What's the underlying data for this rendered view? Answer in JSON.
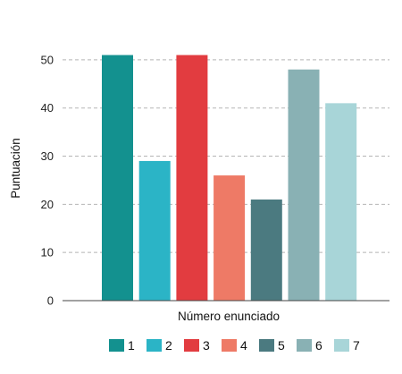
{
  "chart_data": {
    "type": "bar",
    "categories": [
      "1",
      "2",
      "3",
      "4",
      "5",
      "6",
      "7"
    ],
    "values": [
      51,
      29,
      51,
      26,
      21,
      48,
      41
    ],
    "colors": [
      "#13918f",
      "#2bb4c6",
      "#e23c40",
      "#ee7a66",
      "#4b7a80",
      "#89b1b4",
      "#a8d5d8"
    ],
    "title": "",
    "xlabel": "Número enunciado",
    "ylabel": "Puntuación",
    "ylim": [
      0,
      55
    ],
    "yticks": [
      0,
      10,
      20,
      30,
      40,
      50
    ],
    "grid": true,
    "legend": "bottom"
  }
}
